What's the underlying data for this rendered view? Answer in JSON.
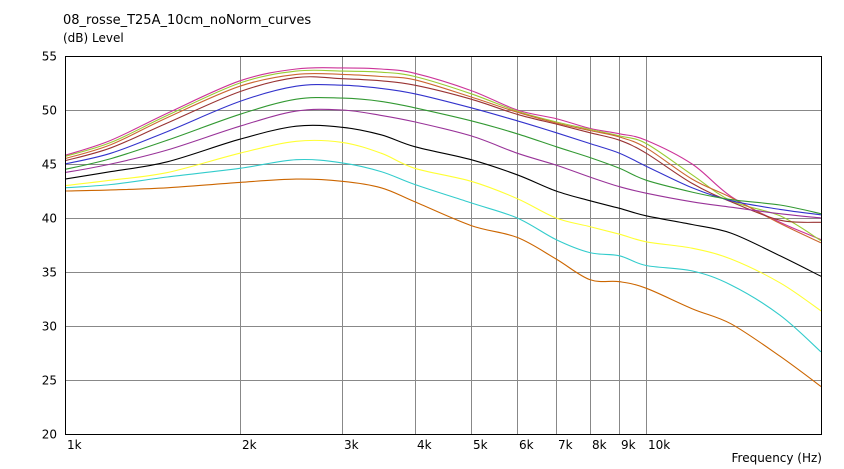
{
  "chart_data": {
    "type": "line",
    "title": "08_rosse_T25A_10cm_noNorm_curves",
    "ylabel": "(dB)  Level",
    "xlabel": "Frequency  (Hz)",
    "x_scale": "log",
    "xlim": [
      1000,
      20000
    ],
    "ylim": [
      20,
      55
    ],
    "grid": true,
    "y_ticks": [
      20,
      25,
      30,
      35,
      40,
      45,
      50,
      55
    ],
    "x_ticks": [
      {
        "value": 1000,
        "label": "1k"
      },
      {
        "value": 2000,
        "label": "2k"
      },
      {
        "value": 3000,
        "label": "3k"
      },
      {
        "value": 4000,
        "label": "4k"
      },
      {
        "value": 5000,
        "label": "5k"
      },
      {
        "value": 6000,
        "label": "6k"
      },
      {
        "value": 7000,
        "label": "7k"
      },
      {
        "value": 8000,
        "label": "8k"
      },
      {
        "value": 9000,
        "label": "9k"
      },
      {
        "value": 10000,
        "label": "10k"
      }
    ],
    "x_minor_grid": [
      20000
    ],
    "x": [
      1000,
      1200,
      1500,
      2000,
      2500,
      3000,
      3500,
      4000,
      5000,
      6000,
      7000,
      8000,
      9000,
      10000,
      12000,
      14000,
      17000,
      20000
    ],
    "series": [
      {
        "color": "#cc3399",
        "values": [
          45.8,
          47.2,
          49.7,
          52.7,
          53.8,
          53.9,
          53.8,
          53.4,
          51.8,
          50.0,
          49.2,
          48.3,
          47.8,
          47.2,
          45.0,
          42.0,
          39.6,
          38.0
        ]
      },
      {
        "color": "#99cc33",
        "values": [
          45.7,
          47.0,
          49.5,
          52.5,
          53.6,
          53.6,
          53.5,
          53.1,
          51.5,
          49.9,
          48.9,
          48.2,
          47.6,
          46.9,
          44.0,
          41.6,
          40.2,
          37.9
        ]
      },
      {
        "color": "#cc6633",
        "values": [
          45.5,
          46.8,
          49.3,
          52.2,
          53.3,
          53.3,
          53.1,
          52.8,
          51.2,
          49.8,
          48.8,
          48.1,
          47.5,
          46.5,
          43.6,
          41.9,
          39.5,
          37.7
        ]
      },
      {
        "color": "#993333",
        "values": [
          45.3,
          46.5,
          48.8,
          51.7,
          53.0,
          52.9,
          52.7,
          52.3,
          51.0,
          49.6,
          48.7,
          47.9,
          47.2,
          46.0,
          43.2,
          41.5,
          39.8,
          39.6
        ]
      },
      {
        "color": "#3333cc",
        "values": [
          45.0,
          46.0,
          48.0,
          50.8,
          52.2,
          52.3,
          52.0,
          51.5,
          50.2,
          49.0,
          47.9,
          46.9,
          46.0,
          44.8,
          42.8,
          41.6,
          40.8,
          40.3
        ]
      },
      {
        "color": "#339933",
        "values": [
          44.5,
          45.5,
          47.2,
          49.6,
          51.0,
          51.1,
          50.8,
          50.2,
          49.0,
          47.8,
          46.6,
          45.6,
          44.6,
          43.5,
          42.4,
          41.7,
          41.2,
          40.4
        ]
      },
      {
        "color": "#993399",
        "values": [
          44.2,
          45.0,
          46.3,
          48.5,
          49.9,
          50.0,
          49.5,
          48.9,
          47.6,
          46.0,
          44.9,
          43.8,
          42.9,
          42.3,
          41.5,
          41.0,
          40.4,
          40.0
        ]
      },
      {
        "color": "#000000",
        "values": [
          43.6,
          44.3,
          45.2,
          47.3,
          48.5,
          48.4,
          47.7,
          46.6,
          45.4,
          44.0,
          42.5,
          41.6,
          40.9,
          40.2,
          39.4,
          38.6,
          36.5,
          34.6
        ]
      },
      {
        "color": "#ffff33",
        "values": [
          43.0,
          43.5,
          44.2,
          46.0,
          47.1,
          47.0,
          46.0,
          44.6,
          43.4,
          41.8,
          40.0,
          39.2,
          38.5,
          37.8,
          37.2,
          36.2,
          34.0,
          31.4
        ]
      },
      {
        "color": "#33cccc",
        "values": [
          42.8,
          43.1,
          43.8,
          44.6,
          45.4,
          45.1,
          44.3,
          43.1,
          41.4,
          40.0,
          38.0,
          36.8,
          36.5,
          35.6,
          35.1,
          33.8,
          31.0,
          27.6
        ]
      },
      {
        "color": "#cc6600",
        "values": [
          42.5,
          42.6,
          42.8,
          43.3,
          43.6,
          43.4,
          42.8,
          41.5,
          39.3,
          38.2,
          36.2,
          34.3,
          34.1,
          33.5,
          31.6,
          30.2,
          27.2,
          24.4
        ]
      }
    ]
  }
}
